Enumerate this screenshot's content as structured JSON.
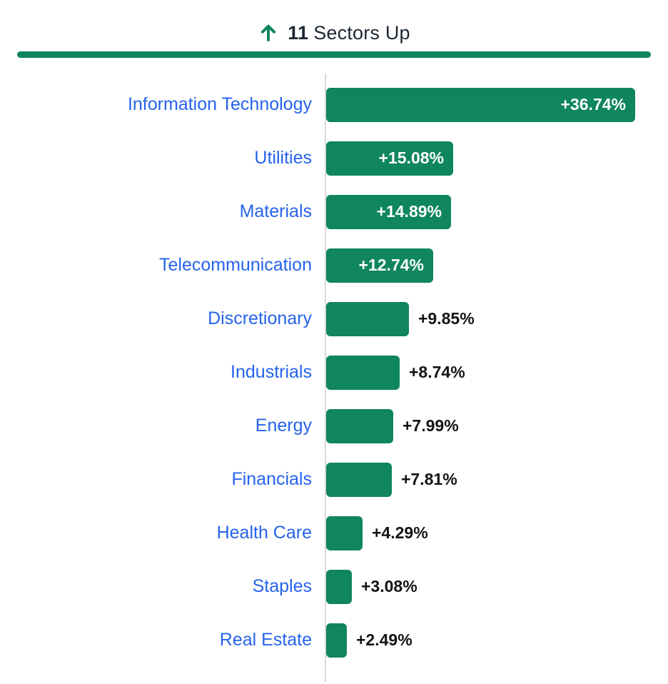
{
  "header": {
    "count": "11",
    "label": "Sectors Up",
    "arrow_icon": "up-arrow"
  },
  "colors": {
    "bar_green": "#0f865b",
    "divider_green": "#0f865b",
    "category_blue": "#2563eb",
    "header_text": "#1d2733",
    "value_inside": "#ffffff",
    "value_outside": "#141414",
    "axis_gray": "#d9d9d9"
  },
  "chart_data": {
    "type": "bar",
    "orientation": "horizontal",
    "title": "11 Sectors Up",
    "xlabel": "",
    "ylabel": "",
    "xlim": [
      0,
      36.74
    ],
    "grid": false,
    "legend": false,
    "categories": [
      "Information Technology",
      "Utilities",
      "Materials",
      "Telecommunication",
      "Discretionary",
      "Industrials",
      "Energy",
      "Financials",
      "Health Care",
      "Staples",
      "Real Estate"
    ],
    "values": [
      36.74,
      15.08,
      14.89,
      12.74,
      9.85,
      8.74,
      7.99,
      7.81,
      4.29,
      3.08,
      2.49
    ],
    "value_labels": [
      "+36.74%",
      "+15.08%",
      "+14.89%",
      "+12.74%",
      "+9.85%",
      "+8.74%",
      "+7.99%",
      "+7.81%",
      "+4.29%",
      "+3.08%",
      "+2.49%"
    ]
  }
}
